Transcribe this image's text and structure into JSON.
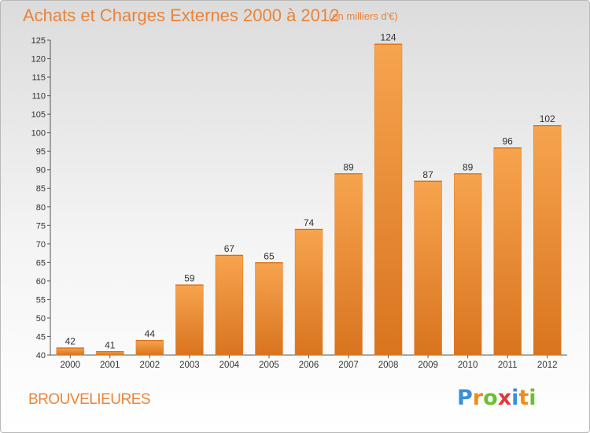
{
  "title": "Achats et Charges Externes 2000 à 2012",
  "unit": "(en milliers d'€)",
  "commune": "BROUVELIEURES",
  "logo": {
    "letters": [
      "P",
      "r",
      "o",
      "x",
      "i",
      "t",
      "i"
    ],
    "colors": [
      "#3a8fd8",
      "#f08c1e",
      "#6cbf2e",
      "#e03a3a",
      "#3a8fd8",
      "#f08c1e",
      "#6cbf2e"
    ]
  },
  "colors": {
    "bar_light": "#f7a44e",
    "bar_dark": "#d9741f",
    "text": "#e8843c"
  },
  "chart_data": {
    "type": "bar",
    "categories": [
      "2000",
      "2001",
      "2002",
      "2003",
      "2004",
      "2005",
      "2006",
      "2007",
      "2008",
      "2009",
      "2010",
      "2011",
      "2012"
    ],
    "values": [
      42,
      41,
      44,
      59,
      67,
      65,
      74,
      89,
      124,
      87,
      89,
      96,
      102
    ],
    "value_labels": [
      "42",
      "41",
      "44",
      "59",
      "67",
      "65",
      "74",
      "89",
      "124",
      "87",
      "89",
      "96",
      "102"
    ],
    "ylim": [
      40,
      125
    ],
    "yticks": [
      "40",
      "45",
      "50",
      "55",
      "60",
      "65",
      "70",
      "75",
      "80",
      "85",
      "90",
      "95",
      "100",
      "105",
      "110",
      "115",
      "120",
      "125"
    ],
    "title": "Achats et Charges Externes 2000 à 2012",
    "xlabel": "",
    "ylabel": "",
    "grid": false,
    "legend": "none"
  }
}
